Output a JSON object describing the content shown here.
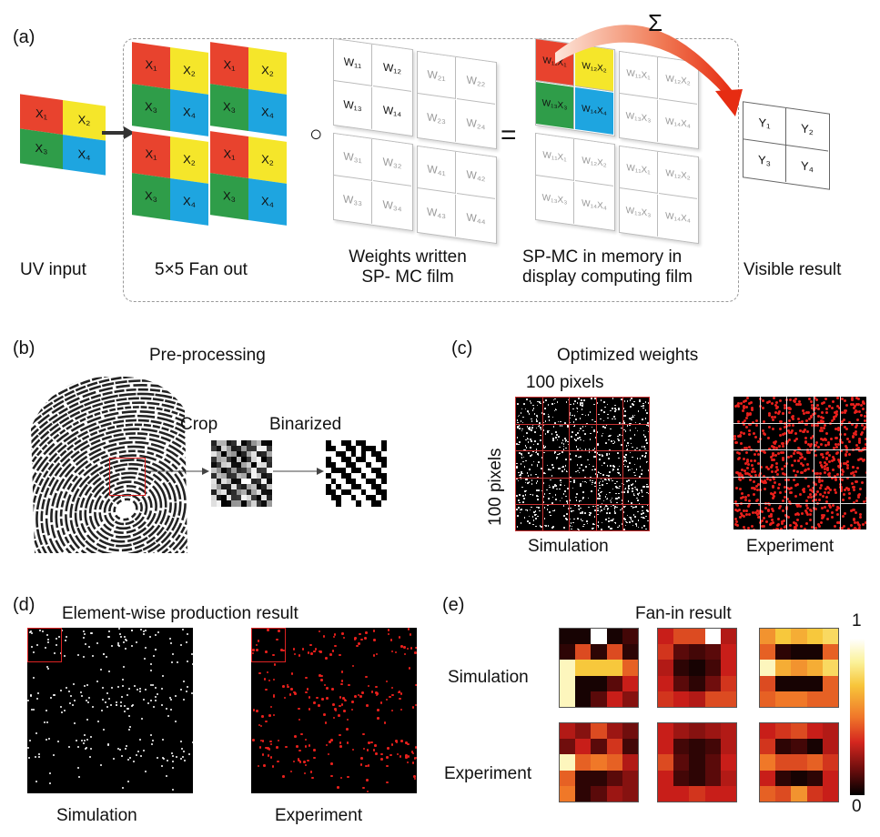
{
  "panel_a": {
    "label": "(a)",
    "sum_symbol": "Σ",
    "inputs": [
      "X₁",
      "X₂",
      "X₃",
      "X₄"
    ],
    "input_colors": [
      "#e8432e",
      "#f5e62a",
      "#2f9d49",
      "#1ea5e0"
    ],
    "caption_input": "UV input",
    "caption_fanout": "5×5 Fan out",
    "caption_weights": [
      "Weights written",
      "SP- MC film"
    ],
    "caption_memory": [
      "SP-MC in memory in",
      "display computing film"
    ],
    "caption_result": "Visible result",
    "hadamard_symbol": "○",
    "equals_symbol": "=",
    "weights": [
      [
        "W₁₁",
        "W₁₂",
        "W₁₃",
        "W₁₄"
      ],
      [
        "W₂₁",
        "W₂₂",
        "W₂₃",
        "W₂₄"
      ],
      [
        "W₃₁",
        "W₃₂",
        "W₃₃",
        "W₃₄"
      ],
      [
        "W₄₁",
        "W₄₂",
        "W₄₃",
        "W₄₄"
      ]
    ],
    "products": [
      "W₁₁X₁",
      "W₁₂X₂",
      "W₁₃X₃",
      "W₁₄X₄"
    ],
    "outputs": [
      "Y₁",
      "Y₂",
      "Y₃",
      "Y₄"
    ]
  },
  "panel_b": {
    "label": "(b)",
    "title": "Pre-processing",
    "crop": "Crop",
    "binarized": "Binarized"
  },
  "panel_c": {
    "label": "(c)",
    "title": "Optimized weights",
    "dim_top": "100 pixels",
    "dim_side": "100 pixels",
    "sim": "Simulation",
    "exp": "Experiment"
  },
  "panel_d": {
    "label": "(d)",
    "title": "Element-wise production result",
    "sim": "Simulation",
    "exp": "Experiment"
  },
  "panel_e": {
    "label": "(e)",
    "title": "Fan-in result",
    "row_sim": "Simulation",
    "row_exp": "Experiment",
    "cbar_max": "1",
    "cbar_min": "0",
    "maps_sim": [
      [
        [
          0.05,
          0.05,
          1.0,
          0.05,
          0.15
        ],
        [
          0.1,
          0.55,
          0.1,
          0.55,
          0.1
        ],
        [
          0.95,
          0.8,
          0.8,
          0.8,
          0.6
        ],
        [
          0.95,
          0.05,
          0.05,
          0.2,
          0.45
        ],
        [
          0.95,
          0.05,
          0.2,
          0.45,
          0.3
        ]
      ],
      [
        [
          0.45,
          0.55,
          0.55,
          1.0,
          0.4
        ],
        [
          0.5,
          0.2,
          0.15,
          0.2,
          0.45
        ],
        [
          0.4,
          0.1,
          0.05,
          0.15,
          0.45
        ],
        [
          0.45,
          0.2,
          0.1,
          0.25,
          0.5
        ],
        [
          0.5,
          0.45,
          0.4,
          0.55,
          0.55
        ]
      ],
      [
        [
          0.7,
          0.8,
          0.75,
          0.8,
          0.85
        ],
        [
          0.6,
          0.1,
          0.05,
          0.05,
          0.6
        ],
        [
          0.95,
          0.75,
          0.7,
          0.75,
          0.85
        ],
        [
          0.55,
          0.05,
          0.05,
          0.05,
          0.6
        ],
        [
          0.6,
          0.65,
          0.65,
          0.6,
          0.6
        ]
      ]
    ],
    "maps_exp": [
      [
        [
          0.4,
          0.3,
          0.55,
          0.35,
          0.25
        ],
        [
          0.25,
          0.45,
          0.2,
          0.5,
          0.15
        ],
        [
          0.95,
          0.6,
          0.65,
          0.6,
          0.4
        ],
        [
          0.6,
          0.1,
          0.1,
          0.2,
          0.3
        ],
        [
          0.65,
          0.1,
          0.2,
          0.35,
          0.3
        ]
      ],
      [
        [
          0.45,
          0.35,
          0.3,
          0.35,
          0.4
        ],
        [
          0.45,
          0.15,
          0.1,
          0.15,
          0.4
        ],
        [
          0.55,
          0.2,
          0.1,
          0.2,
          0.45
        ],
        [
          0.45,
          0.15,
          0.1,
          0.2,
          0.4
        ],
        [
          0.45,
          0.45,
          0.5,
          0.45,
          0.45
        ]
      ],
      [
        [
          0.45,
          0.5,
          0.55,
          0.45,
          0.4
        ],
        [
          0.5,
          0.1,
          0.15,
          0.05,
          0.4
        ],
        [
          0.65,
          0.55,
          0.55,
          0.6,
          0.5
        ],
        [
          0.45,
          0.1,
          0.05,
          0.1,
          0.45
        ],
        [
          0.6,
          0.55,
          0.7,
          0.5,
          0.45
        ]
      ]
    ]
  }
}
